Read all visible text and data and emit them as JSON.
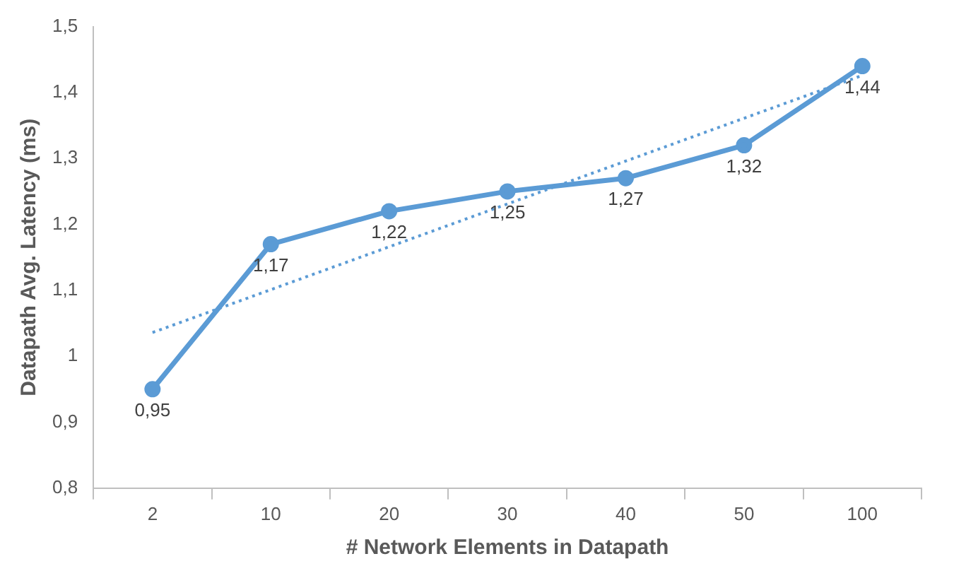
{
  "chart_data": {
    "type": "line",
    "xlabel": "# Network Elements in Datapath",
    "ylabel": "Datapath Avg. Latency (ms)",
    "categories": [
      "2",
      "10",
      "20",
      "30",
      "40",
      "50",
      "100"
    ],
    "series": [
      {
        "color": "#5b9bd5",
        "values": [
          0.95,
          1.17,
          1.22,
          1.25,
          1.27,
          1.32,
          1.44
        ],
        "value_labels": [
          "0,95",
          "1,17",
          "1,22",
          "1,25",
          "1,27",
          "1,32",
          "1,44"
        ],
        "marker": "circle",
        "line_style": "solid"
      },
      {
        "color": "#5b9bd5",
        "values": [
          1.036,
          1.101,
          1.166,
          1.231,
          1.296,
          1.361,
          1.426
        ],
        "marker": "none",
        "line_style": "dotted"
      }
    ],
    "ylim": [
      0.8,
      1.5
    ],
    "yticks": [
      {
        "value": 0.8,
        "label": "0,8"
      },
      {
        "value": 0.9,
        "label": "0,9"
      },
      {
        "value": 1,
        "label": "1"
      },
      {
        "value": 1.1,
        "label": "1,1"
      },
      {
        "value": 1.2,
        "label": "1,2"
      },
      {
        "value": 1.3,
        "label": "1,3"
      },
      {
        "value": 1.4,
        "label": "1,4"
      },
      {
        "value": 1.5,
        "label": "1,5"
      }
    ],
    "grid": false,
    "legend": false
  }
}
